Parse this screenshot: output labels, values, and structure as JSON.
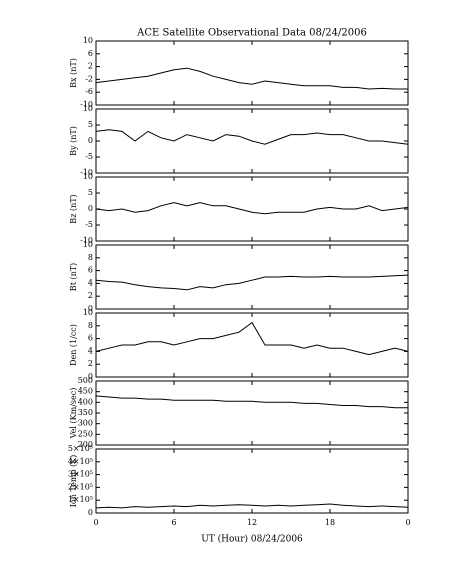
{
  "chart_data": [
    {
      "type": "line",
      "title": "ACE Satellite Observational Data   08/24/2006",
      "ylabel": "Bx (nT)",
      "color": "#000000",
      "x": [
        0,
        1,
        2,
        3,
        4,
        5,
        6,
        7,
        8,
        9,
        10,
        11,
        12,
        13,
        14,
        15,
        16,
        17,
        18,
        19,
        20,
        21,
        22,
        23,
        24
      ],
      "values": [
        -3,
        -2.5,
        -2,
        -1.5,
        -1,
        0,
        1,
        1.5,
        0.5,
        -1,
        -2,
        -3,
        -3.5,
        -2.5,
        -3,
        -3.5,
        -4,
        -4,
        -4,
        -4.5,
        -4.5,
        -5,
        -4.8,
        -5,
        -5
      ],
      "xlim": [
        0,
        24
      ],
      "ylim": [
        -10,
        10
      ],
      "yticks": [
        10,
        6,
        2,
        -2,
        -6,
        -10
      ]
    },
    {
      "type": "line",
      "ylabel": "By (nT)",
      "color": "#000000",
      "x": [
        0,
        1,
        2,
        3,
        4,
        5,
        6,
        7,
        8,
        9,
        10,
        11,
        12,
        13,
        14,
        15,
        16,
        17,
        18,
        19,
        20,
        21,
        22,
        23,
        24
      ],
      "values": [
        3,
        3.5,
        3,
        0,
        3,
        1,
        0,
        2,
        1,
        0,
        2,
        1.5,
        0,
        -1,
        0.5,
        2,
        2,
        2.5,
        2,
        2,
        1,
        0,
        0,
        -0.5,
        -1
      ],
      "xlim": [
        0,
        24
      ],
      "ylim": [
        -10,
        10
      ],
      "yticks": [
        10,
        5,
        0,
        -5,
        -10
      ]
    },
    {
      "type": "line",
      "ylabel": "Bz (nT)",
      "color": "#000000",
      "x": [
        0,
        1,
        2,
        3,
        4,
        5,
        6,
        7,
        8,
        9,
        10,
        11,
        12,
        13,
        14,
        15,
        16,
        17,
        18,
        19,
        20,
        21,
        22,
        23,
        24
      ],
      "values": [
        0,
        -0.5,
        0,
        -1,
        -0.5,
        1,
        2,
        1,
        2,
        1,
        1,
        0,
        -1,
        -1.5,
        -1,
        -1,
        -1,
        0,
        0.5,
        0,
        0,
        1,
        -0.5,
        0,
        0.5
      ],
      "xlim": [
        0,
        24
      ],
      "ylim": [
        -10,
        10
      ],
      "yticks": [
        10,
        5,
        0,
        -5,
        -10
      ]
    },
    {
      "type": "line",
      "ylabel": "Bt (nT)",
      "color": "#000000",
      "x": [
        0,
        1,
        2,
        3,
        4,
        5,
        6,
        7,
        8,
        9,
        10,
        11,
        12,
        13,
        14,
        15,
        16,
        17,
        18,
        19,
        20,
        21,
        22,
        23,
        24
      ],
      "values": [
        4.5,
        4.3,
        4.2,
        3.8,
        3.5,
        3.3,
        3.2,
        3.0,
        3.5,
        3.3,
        3.8,
        4.0,
        4.5,
        5.0,
        5.0,
        5.1,
        5.0,
        5.0,
        5.1,
        5.0,
        5.0,
        5.0,
        5.1,
        5.2,
        5.3
      ],
      "xlim": [
        0,
        24
      ],
      "ylim": [
        0,
        10
      ],
      "yticks": [
        10,
        8,
        6,
        4,
        2,
        0
      ]
    },
    {
      "type": "line",
      "ylabel": "Den (1/cc)",
      "color": "#000000",
      "x": [
        0,
        1,
        2,
        3,
        4,
        5,
        6,
        7,
        8,
        9,
        10,
        11,
        12,
        13,
        14,
        15,
        16,
        17,
        18,
        19,
        20,
        21,
        22,
        23,
        24
      ],
      "values": [
        4,
        4.5,
        5,
        5,
        5.5,
        5.5,
        5,
        5.5,
        6,
        6,
        6.5,
        7,
        8.5,
        5,
        5,
        5,
        4.5,
        5,
        4.5,
        4.5,
        4,
        3.5,
        4,
        4.5,
        4
      ],
      "xlim": [
        0,
        24
      ],
      "ylim": [
        0,
        10
      ],
      "yticks": [
        10,
        8,
        6,
        4,
        2,
        0
      ]
    },
    {
      "type": "line",
      "ylabel": "Vel (Km/sec)",
      "color": "#000000",
      "x": [
        0,
        1,
        2,
        3,
        4,
        5,
        6,
        7,
        8,
        9,
        10,
        11,
        12,
        13,
        14,
        15,
        16,
        17,
        18,
        19,
        20,
        21,
        22,
        23,
        24
      ],
      "values": [
        430,
        425,
        420,
        420,
        415,
        415,
        410,
        410,
        410,
        410,
        405,
        405,
        405,
        400,
        400,
        400,
        395,
        395,
        390,
        385,
        385,
        380,
        380,
        375,
        375
      ],
      "xlim": [
        0,
        24
      ],
      "ylim": [
        200,
        500
      ],
      "yticks": [
        500,
        450,
        400,
        350,
        300,
        250,
        200
      ]
    },
    {
      "type": "line",
      "ylabel": "Ion Temp (K)",
      "xlabel": "UT (Hour)   08/24/2006",
      "color": "#000000",
      "x": [
        0,
        1,
        2,
        3,
        4,
        5,
        6,
        7,
        8,
        9,
        10,
        11,
        12,
        13,
        14,
        15,
        16,
        17,
        18,
        19,
        20,
        21,
        22,
        23,
        24
      ],
      "values": [
        40000,
        45000,
        40000,
        50000,
        45000,
        50000,
        55000,
        50000,
        60000,
        55000,
        60000,
        65000,
        60000,
        55000,
        60000,
        55000,
        60000,
        65000,
        70000,
        60000,
        55000,
        50000,
        55000,
        50000,
        45000
      ],
      "xlim": [
        0,
        24
      ],
      "ylim": [
        0,
        500000
      ],
      "yticks": [
        {
          "value": 500000,
          "label": "5×10⁵"
        },
        {
          "value": 400000,
          "label": "4×10⁵"
        },
        {
          "value": 300000,
          "label": "3×10⁵"
        },
        {
          "value": 200000,
          "label": "2×10⁵"
        },
        {
          "value": 100000,
          "label": "1×10⁵"
        },
        0
      ],
      "xticks": [
        0,
        6,
        12,
        18,
        {
          "value": 24,
          "label": "0"
        }
      ]
    }
  ]
}
